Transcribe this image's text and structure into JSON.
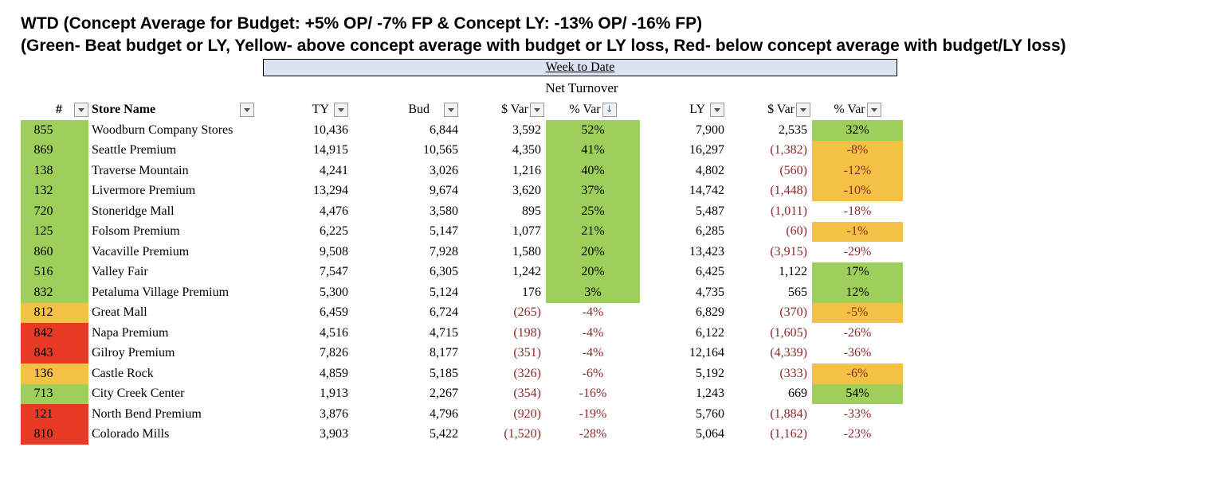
{
  "title": {
    "line1": "WTD (Concept Average for Budget: +5% OP/ -7% FP & Concept LY: -13% OP/ -16% FP)",
    "line2": "(Green- Beat budget or LY, Yellow- above concept average with budget or LY loss, Red- below concept average with budget/LY loss)"
  },
  "banner": "Week to Date",
  "metric": "Net Turnover",
  "colors": {
    "green": "#9ecf5b",
    "yellow": "#f3c143",
    "red": "#e63a24",
    "negative_text": "#8b2a2a"
  },
  "headers": {
    "num": "#",
    "store": "Store Name",
    "ty": "TY",
    "bud": "Bud",
    "var_bud": "$ Var",
    "pct_bud": "% Var",
    "ly": "LY",
    "var_ly": "$ Var",
    "pct_ly": "% Var"
  },
  "rows": [
    {
      "num": "855",
      "name": "Woodburn Company Stores",
      "ty": "10,436",
      "bud": "6,844",
      "var_bud": "3,592",
      "pct_bud": "52%",
      "ly": "7,900",
      "var_ly": "2,535",
      "pct_ly": "32%"
    },
    {
      "num": "869",
      "name": "Seattle Premium",
      "ty": "14,915",
      "bud": "10,565",
      "var_bud": "4,350",
      "pct_bud": "41%",
      "ly": "16,297",
      "var_ly": "(1,382)",
      "pct_ly": "-8%"
    },
    {
      "num": "138",
      "name": "Traverse Mountain",
      "ty": "4,241",
      "bud": "3,026",
      "var_bud": "1,216",
      "pct_bud": "40%",
      "ly": "4,802",
      "var_ly": "(560)",
      "pct_ly": "-12%"
    },
    {
      "num": "132",
      "name": "Livermore Premium",
      "ty": "13,294",
      "bud": "9,674",
      "var_bud": "3,620",
      "pct_bud": "37%",
      "ly": "14,742",
      "var_ly": "(1,448)",
      "pct_ly": "-10%"
    },
    {
      "num": "720",
      "name": "Stoneridge Mall",
      "ty": "4,476",
      "bud": "3,580",
      "var_bud": "895",
      "pct_bud": "25%",
      "ly": "5,487",
      "var_ly": "(1,011)",
      "pct_ly": "-18%"
    },
    {
      "num": "125",
      "name": "Folsom Premium",
      "ty": "6,225",
      "bud": "5,147",
      "var_bud": "1,077",
      "pct_bud": "21%",
      "ly": "6,285",
      "var_ly": "(60)",
      "pct_ly": "-1%"
    },
    {
      "num": "860",
      "name": "Vacaville Premium",
      "ty": "9,508",
      "bud": "7,928",
      "var_bud": "1,580",
      "pct_bud": "20%",
      "ly": "13,423",
      "var_ly": "(3,915)",
      "pct_ly": "-29%"
    },
    {
      "num": "516",
      "name": "Valley Fair",
      "ty": "7,547",
      "bud": "6,305",
      "var_bud": "1,242",
      "pct_bud": "20%",
      "ly": "6,425",
      "var_ly": "1,122",
      "pct_ly": "17%"
    },
    {
      "num": "832",
      "name": "Petaluma Village Premium",
      "ty": "5,300",
      "bud": "5,124",
      "var_bud": "176",
      "pct_bud": "3%",
      "ly": "4,735",
      "var_ly": "565",
      "pct_ly": "12%"
    },
    {
      "num": "812",
      "name": "Great Mall",
      "ty": "6,459",
      "bud": "6,724",
      "var_bud": "(265)",
      "pct_bud": "-4%",
      "ly": "6,829",
      "var_ly": "(370)",
      "pct_ly": "-5%"
    },
    {
      "num": "842",
      "name": "Napa Premium",
      "ty": "4,516",
      "bud": "4,715",
      "var_bud": "(198)",
      "pct_bud": "-4%",
      "ly": "6,122",
      "var_ly": "(1,605)",
      "pct_ly": "-26%"
    },
    {
      "num": "843",
      "name": "Gilroy Premium",
      "ty": "7,826",
      "bud": "8,177",
      "var_bud": "(351)",
      "pct_bud": "-4%",
      "ly": "12,164",
      "var_ly": "(4,339)",
      "pct_ly": "-36%"
    },
    {
      "num": "136",
      "name": "Castle Rock",
      "ty": "4,859",
      "bud": "5,185",
      "var_bud": "(326)",
      "pct_bud": "-6%",
      "ly": "5,192",
      "var_ly": "(333)",
      "pct_ly": "-6%"
    },
    {
      "num": "713",
      "name": "City Creek Center",
      "ty": "1,913",
      "bud": "2,267",
      "var_bud": "(354)",
      "pct_bud": "-16%",
      "ly": "1,243",
      "var_ly": "669",
      "pct_ly": "54%"
    },
    {
      "num": "121",
      "name": "North Bend Premium",
      "ty": "3,876",
      "bud": "4,796",
      "var_bud": "(920)",
      "pct_bud": "-19%",
      "ly": "5,760",
      "var_ly": "(1,884)",
      "pct_ly": "-33%"
    },
    {
      "num": "810",
      "name": "Colorado Mills",
      "ty": "3,903",
      "bud": "5,422",
      "var_bud": "(1,520)",
      "pct_bud": "-28%",
      "ly": "5,064",
      "var_ly": "(1,162)",
      "pct_ly": "-23%"
    }
  ],
  "row_flags": [
    {
      "num": "green",
      "pct_bud": "green",
      "pct_ly": "green"
    },
    {
      "num": "green",
      "pct_bud": "green",
      "pct_ly": "yellow"
    },
    {
      "num": "green",
      "pct_bud": "green",
      "pct_ly": "yellow"
    },
    {
      "num": "green",
      "pct_bud": "green",
      "pct_ly": "yellow"
    },
    {
      "num": "green",
      "pct_bud": "green",
      "pct_ly": "none"
    },
    {
      "num": "green",
      "pct_bud": "green",
      "pct_ly": "yellow"
    },
    {
      "num": "green",
      "pct_bud": "green",
      "pct_ly": "none"
    },
    {
      "num": "green",
      "pct_bud": "green",
      "pct_ly": "green"
    },
    {
      "num": "green",
      "pct_bud": "green",
      "pct_ly": "green"
    },
    {
      "num": "yellow",
      "pct_bud": "none",
      "pct_ly": "yellow"
    },
    {
      "num": "red",
      "pct_bud": "none",
      "pct_ly": "none"
    },
    {
      "num": "red",
      "pct_bud": "none",
      "pct_ly": "none"
    },
    {
      "num": "yellow",
      "pct_bud": "none",
      "pct_ly": "yellow"
    },
    {
      "num": "green",
      "pct_bud": "none",
      "pct_ly": "green"
    },
    {
      "num": "red",
      "pct_bud": "none",
      "pct_ly": "none"
    },
    {
      "num": "red",
      "pct_bud": "none",
      "pct_ly": "none"
    }
  ]
}
